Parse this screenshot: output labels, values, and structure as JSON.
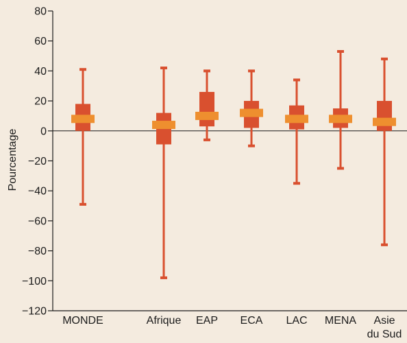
{
  "colors": {
    "background": "#f4ebdf",
    "whisker": "#d9502f",
    "box": "#d9502f",
    "median": "#ee8f2f",
    "axis": "#1a1a1a"
  },
  "chart_data": {
    "type": "boxplot",
    "title": "",
    "xlabel": "",
    "ylabel": "Pourcentage",
    "ylim": [
      -120,
      80
    ],
    "yticks": [
      80,
      60,
      40,
      20,
      0,
      -20,
      -40,
      -60,
      -80,
      -100,
      -120
    ],
    "ytick_labels": [
      "80",
      "60",
      "40",
      "20",
      "0",
      "−20",
      "−40",
      "−60",
      "−80",
      "−100",
      "−120"
    ],
    "zero_line": true,
    "grid": false,
    "categories": [
      {
        "key": "monde",
        "lines": [
          "MONDE"
        ],
        "min": -49,
        "q1": 0,
        "median": 8,
        "q3": 18,
        "max": 41
      },
      {
        "key": "afrique",
        "lines": [
          "Afrique"
        ],
        "min": -98,
        "q1": -9,
        "median": 4,
        "q3": 12,
        "max": 42
      },
      {
        "key": "eap",
        "lines": [
          "EAP"
        ],
        "min": -6,
        "q1": 3,
        "median": 10,
        "q3": 26,
        "max": 40
      },
      {
        "key": "eca",
        "lines": [
          "ECA"
        ],
        "min": -10,
        "q1": 2,
        "median": 12,
        "q3": 20,
        "max": 40
      },
      {
        "key": "lac",
        "lines": [
          "LAC"
        ],
        "min": -35,
        "q1": 1,
        "median": 8,
        "q3": 17,
        "max": 34
      },
      {
        "key": "mena",
        "lines": [
          "MENA"
        ],
        "min": -25,
        "q1": 2,
        "median": 8,
        "q3": 15,
        "max": 53
      },
      {
        "key": "asie",
        "lines": [
          "Asie",
          "du Sud"
        ],
        "min": -76,
        "q1": 0,
        "median": 6,
        "q3": 20,
        "max": 48
      }
    ]
  }
}
